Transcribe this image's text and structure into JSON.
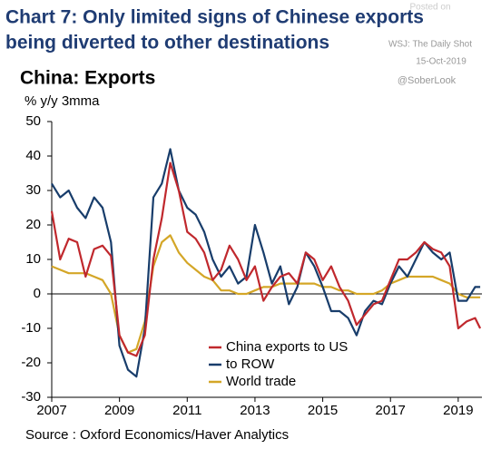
{
  "chart_data": {
    "type": "line",
    "title_lines": [
      "Chart 7: Only limited signs of Chinese exports",
      "being diverted to other destinations"
    ],
    "subtitle": "China: Exports",
    "y_label": "% y/y 3mma",
    "source": "Source : Oxford Economics/Haver Analytics",
    "annotations": [
      "Posted on",
      "WSJ: The Daily Shot",
      "15-Oct-2019",
      "@SoberLook"
    ],
    "x": [
      2007,
      2007.25,
      2007.5,
      2007.75,
      2008,
      2008.25,
      2008.5,
      2008.75,
      2009,
      2009.25,
      2009.5,
      2009.75,
      2010,
      2010.25,
      2010.5,
      2010.75,
      2011,
      2011.25,
      2011.5,
      2011.75,
      2012,
      2012.25,
      2012.5,
      2012.75,
      2013,
      2013.25,
      2013.5,
      2013.75,
      2014,
      2014.25,
      2014.5,
      2014.75,
      2015,
      2015.25,
      2015.5,
      2015.75,
      2016,
      2016.25,
      2016.5,
      2016.75,
      2017,
      2017.25,
      2017.5,
      2017.75,
      2018,
      2018.25,
      2018.5,
      2018.75,
      2019,
      2019.25,
      2019.5,
      2019.65
    ],
    "series": [
      {
        "name": "China exports to US",
        "color": "#c0282d",
        "values": [
          24,
          10,
          16,
          15,
          5,
          13,
          14,
          11,
          -12,
          -17,
          -18,
          -12,
          10,
          22,
          38,
          30,
          18,
          16,
          12,
          4,
          7,
          14,
          10,
          4,
          8,
          -2,
          2,
          5,
          6,
          3,
          12,
          10,
          4,
          8,
          2,
          -2,
          -9,
          -6,
          -3,
          -2,
          4,
          10,
          10,
          12,
          15,
          13,
          12,
          8,
          -10,
          -8,
          -7,
          -10
        ]
      },
      {
        "name": "to ROW",
        "color": "#183d6b",
        "values": [
          32,
          28,
          30,
          25,
          22,
          28,
          25,
          15,
          -15,
          -22,
          -24,
          -10,
          28,
          32,
          42,
          30,
          25,
          23,
          18,
          10,
          5,
          8,
          3,
          5,
          20,
          12,
          3,
          8,
          -3,
          2,
          12,
          8,
          2,
          -5,
          -5,
          -7,
          -12,
          -5,
          -2,
          -3,
          3,
          8,
          5,
          10,
          15,
          12,
          10,
          12,
          -2,
          -2,
          2,
          2
        ]
      },
      {
        "name": "World trade",
        "color": "#d4a627",
        "values": [
          8,
          7,
          6,
          6,
          6,
          5,
          4,
          0,
          -12,
          -17,
          -16,
          -8,
          8,
          15,
          17,
          12,
          9,
          7,
          5,
          4,
          1,
          1,
          0,
          0,
          1,
          2,
          2,
          3,
          3,
          3,
          3,
          3,
          2,
          2,
          1,
          1,
          0,
          0,
          0,
          1,
          3,
          4,
          5,
          5,
          5,
          5,
          4,
          3,
          0,
          -1,
          -1,
          -1
        ]
      }
    ],
    "xlim": [
      2007,
      2019.7
    ],
    "xticks": [
      2007,
      2009,
      2011,
      2013,
      2015,
      2017,
      2019
    ],
    "ylim": [
      -30,
      50
    ],
    "yticks": [
      -30,
      -20,
      -10,
      0,
      10,
      20,
      30,
      40,
      50
    ],
    "legend": "lower center"
  }
}
